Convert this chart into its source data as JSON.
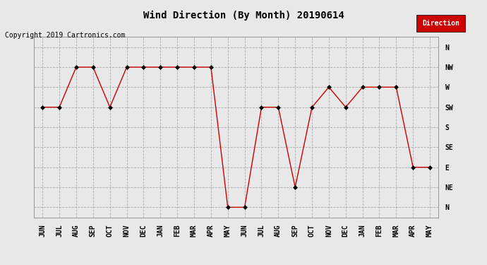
{
  "title": "Wind Direction (By Month) 20190614",
  "copyright_text": "Copyright 2019 Cartronics.com",
  "legend_label": "Direction",
  "legend_bg": "#cc0000",
  "legend_text_color": "#ffffff",
  "x_labels": [
    "JUN",
    "JUL",
    "AUG",
    "SEP",
    "OCT",
    "NOV",
    "DEC",
    "JAN",
    "FEB",
    "MAR",
    "APR",
    "MAY",
    "JUN",
    "JUL",
    "AUG",
    "SEP",
    "OCT",
    "NOV",
    "DEC",
    "JAN",
    "FEB",
    "MAR",
    "APR",
    "MAY"
  ],
  "y_labels": [
    "N",
    "NW",
    "W",
    "SW",
    "S",
    "SE",
    "E",
    "NE",
    "N"
  ],
  "y_values": [
    8,
    7,
    6,
    5,
    4,
    3,
    2,
    1,
    0
  ],
  "y_data": [
    5,
    5,
    7,
    7,
    5,
    7,
    7,
    7,
    7,
    7,
    7,
    0,
    0,
    5,
    5,
    1,
    5,
    6,
    5,
    6,
    6,
    6,
    2,
    2
  ],
  "line_color": "#cc0000",
  "marker": "D",
  "marker_size": 3,
  "marker_color": "#000000",
  "marker_edge_color": "#000000",
  "bg_color": "#e8e8e8",
  "grid_color": "#aaaaaa",
  "title_fontsize": 10,
  "axis_fontsize": 7,
  "copyright_fontsize": 7
}
